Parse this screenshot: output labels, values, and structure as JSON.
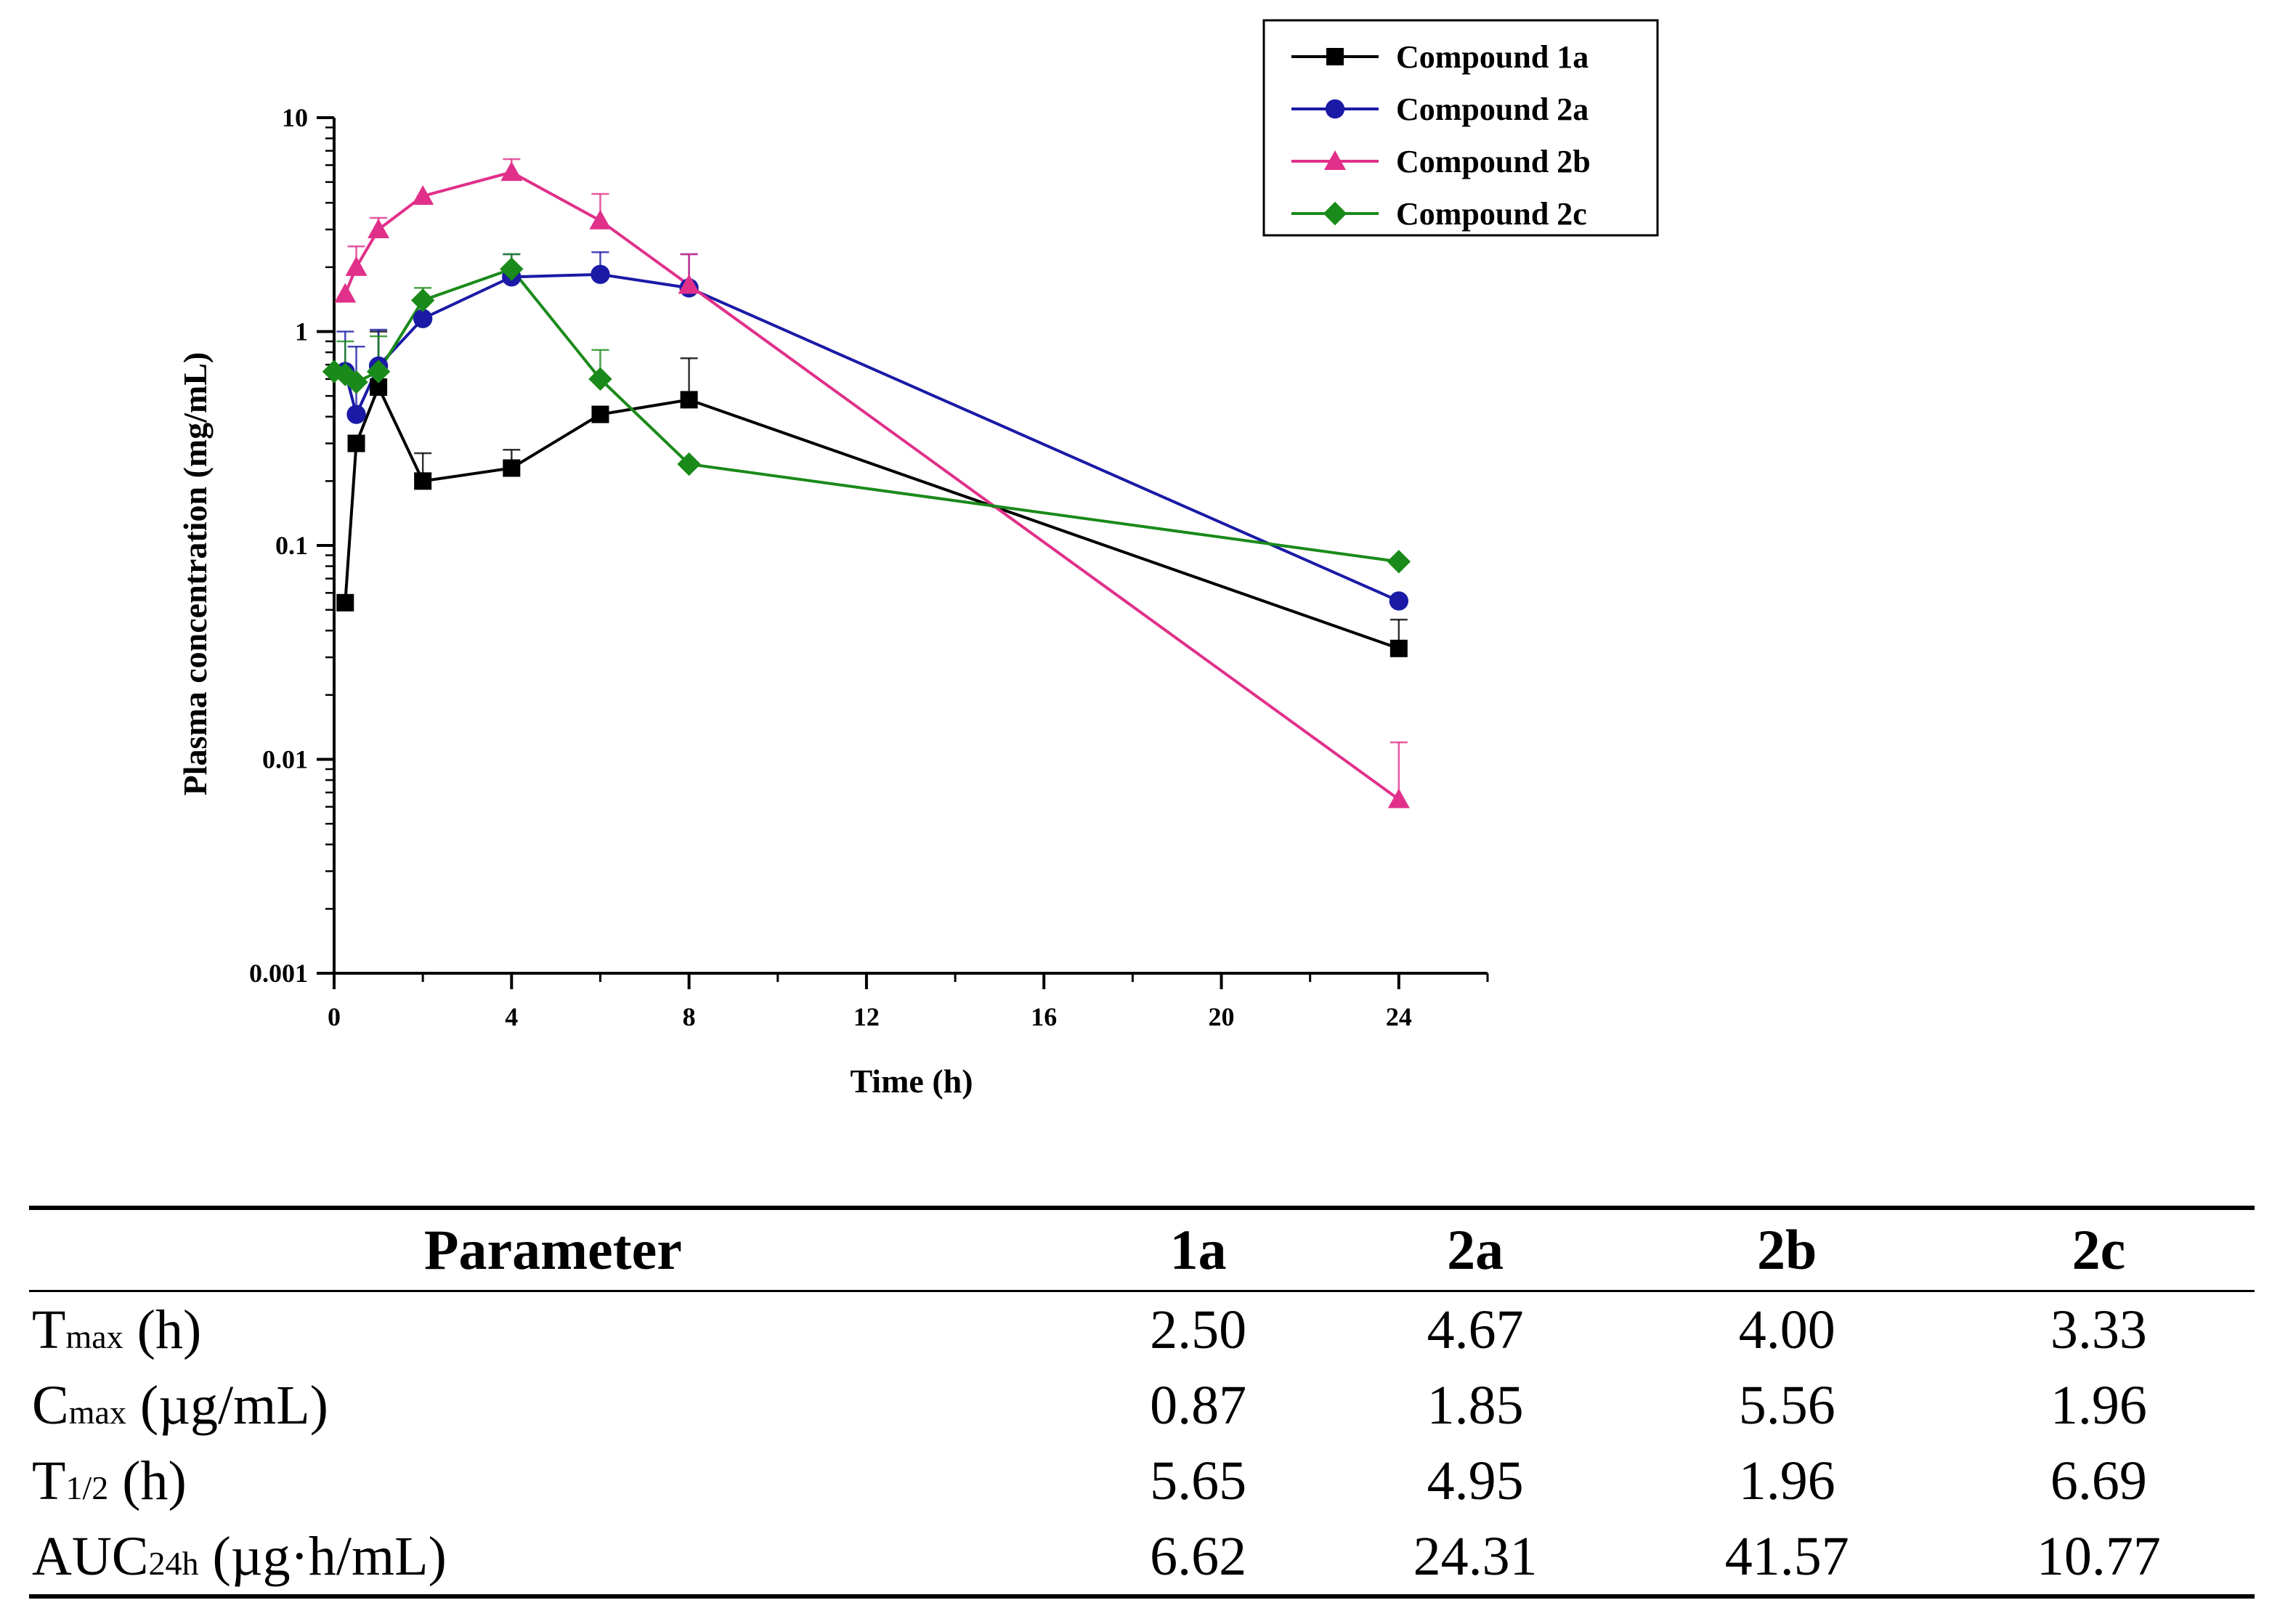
{
  "chart_data": {
    "type": "line",
    "x_scale": "linear",
    "y_scale": "log",
    "xlabel": "Time (h)",
    "ylabel": "Plasma concentration (mg/mL)",
    "xlim": [
      0,
      26
    ],
    "ylim": [
      0.001,
      10
    ],
    "x_ticks": [
      0,
      4,
      8,
      12,
      16,
      20,
      24
    ],
    "x_tick_labels": [
      "0",
      "4",
      "8",
      "12",
      "16",
      "20",
      "24"
    ],
    "y_ticks": [
      0.001,
      0.01,
      0.1,
      1,
      10
    ],
    "y_tick_labels": [
      "0.001",
      "0.01",
      "0.1",
      "1",
      "10"
    ],
    "legend_position": "top-right",
    "series": [
      {
        "name": "Compound 1a",
        "color": "#000000",
        "marker": "square",
        "x": [
          0.25,
          0.5,
          1,
          2,
          4,
          6,
          8,
          24
        ],
        "y": [
          0.054,
          0.3,
          0.55,
          0.2,
          0.23,
          0.41,
          0.48,
          0.033
        ],
        "error_upper": [
          null,
          null,
          1.0,
          0.27,
          0.28,
          null,
          0.75,
          0.045
        ]
      },
      {
        "name": "Compound 2a",
        "color": "#1a1aa6",
        "marker": "circle",
        "x": [
          0.25,
          0.5,
          1,
          2,
          4,
          6,
          8,
          24
        ],
        "y": [
          0.65,
          0.41,
          0.69,
          1.15,
          1.8,
          1.85,
          1.6,
          0.055
        ],
        "error_upper": [
          1.0,
          0.85,
          1.02,
          null,
          2.3,
          2.35,
          2.3,
          null
        ]
      },
      {
        "name": "Compound 2b",
        "color": "#e0308a",
        "marker": "triangle",
        "x": [
          0.25,
          0.5,
          1,
          2,
          4,
          6,
          8,
          24
        ],
        "y": [
          1.5,
          2.0,
          3.0,
          4.3,
          5.56,
          3.3,
          1.65,
          0.0065
        ],
        "error_upper": [
          null,
          2.5,
          3.4,
          null,
          6.4,
          4.4,
          2.3,
          0.012
        ]
      },
      {
        "name": "Compound 2c",
        "color": "#1a8a1a",
        "marker": "diamond",
        "x": [
          0,
          0.25,
          0.5,
          1,
          2,
          4,
          6,
          8,
          24
        ],
        "y": [
          0.65,
          0.63,
          0.58,
          0.65,
          1.4,
          1.96,
          0.6,
          0.24,
          0.084
        ],
        "error_upper": [
          null,
          0.9,
          null,
          0.95,
          1.6,
          2.3,
          0.82,
          null,
          null
        ]
      }
    ]
  },
  "table": {
    "headers": [
      "Parameter",
      "1a",
      "2a",
      "2b",
      "2c"
    ],
    "rows": [
      {
        "param_main": "T",
        "param_sub": "max",
        "param_rest": " (h)",
        "values": [
          "2.50",
          "4.67",
          "4.00",
          "3.33"
        ]
      },
      {
        "param_main": "C",
        "param_sub": "max",
        "param_rest": " (µg/mL)",
        "values": [
          "0.87",
          "1.85",
          "5.56",
          "1.96"
        ]
      },
      {
        "param_main": "T",
        "param_sub": "1/2",
        "param_rest": " (h)",
        "values": [
          "5.65",
          "4.95",
          "1.96",
          "6.69"
        ]
      },
      {
        "param_main": "AUC",
        "param_sub": "24h",
        "param_rest": " (µg·h/mL)",
        "values": [
          "6.62",
          "24.31",
          "41.57",
          "10.77"
        ]
      }
    ]
  }
}
